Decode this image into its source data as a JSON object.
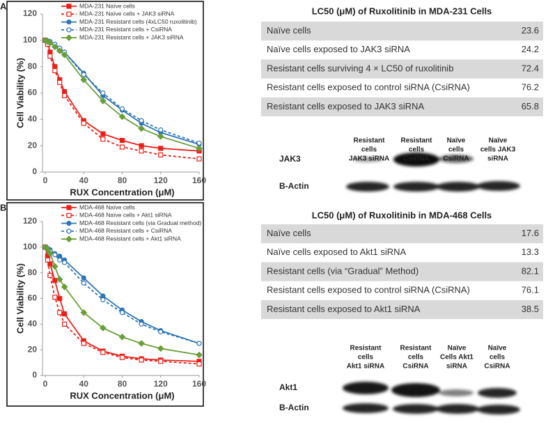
{
  "chart_data": [
    {
      "type": "line",
      "panel_label": "A",
      "x_label": "RUX Concentration (μM)",
      "y_label": "Cell Viability (%)",
      "x": [
        0,
        2.5,
        5,
        10,
        15,
        20,
        40,
        60,
        80,
        100,
        120,
        160
      ],
      "xlim": [
        0,
        160
      ],
      "xticks": [
        0,
        40,
        80,
        120,
        160
      ],
      "ylim": [
        0,
        120
      ],
      "yticks": [
        0,
        20,
        40,
        60,
        80,
        100,
        120
      ],
      "grid": false,
      "legend": "top",
      "series": [
        {
          "name": "MDA-231 Naïve cells",
          "color": "#e8201a",
          "line_style": "solid",
          "marker": "square",
          "filled": true,
          "values": [
            100,
            98,
            91,
            80,
            70,
            61,
            39,
            29,
            24,
            20,
            18,
            16
          ]
        },
        {
          "name": "MDA-231 Naïve cells + JAK3 siRNA",
          "color": "#e8201a",
          "line_style": "dashed",
          "marker": "square",
          "filled": false,
          "values": [
            100,
            97,
            88,
            77,
            68,
            58,
            37,
            25,
            19,
            16,
            13,
            10
          ]
        },
        {
          "name": "MDA-231 Resistant cells (4xLC50 ruxolitinib)",
          "color": "#2e75b6",
          "line_style": "solid",
          "marker": "circle",
          "filled": true,
          "values": [
            100,
            99.5,
            99,
            97,
            94,
            91,
            75,
            58,
            47,
            37,
            30,
            21
          ]
        },
        {
          "name": "MDA-231 Resistant cells + CsiRNA",
          "color": "#2e75b6",
          "line_style": "dashed",
          "marker": "circle",
          "filled": false,
          "values": [
            100,
            99.5,
            99,
            97,
            94,
            91,
            74,
            60,
            48,
            39,
            32,
            22
          ]
        },
        {
          "name": "MDA-231 Resistant cells + JAK3 siRNA",
          "color": "#6a9e3a",
          "line_style": "solid",
          "marker": "diamond",
          "filled": true,
          "values": [
            100,
            99,
            98,
            95,
            92,
            89,
            70,
            54,
            42,
            33,
            27,
            18
          ]
        }
      ]
    },
    {
      "type": "line",
      "panel_label": "B",
      "x_label": "RUX Concentration (μM)",
      "y_label": "Cell Viability (%)",
      "x": [
        0,
        2.5,
        5,
        10,
        15,
        20,
        40,
        60,
        80,
        100,
        120,
        160
      ],
      "xlim": [
        0,
        160
      ],
      "xticks": [
        0,
        40,
        80,
        120,
        160
      ],
      "ylim": [
        0,
        120
      ],
      "yticks": [
        0,
        20,
        40,
        60,
        80,
        100,
        120
      ],
      "grid": false,
      "legend": "top",
      "series": [
        {
          "name": "MDA-468 Naïve cells",
          "color": "#e8201a",
          "line_style": "solid",
          "marker": "square",
          "filled": true,
          "values": [
            100,
            93,
            87,
            74,
            60,
            48,
            27,
            19,
            15,
            13,
            12,
            11
          ]
        },
        {
          "name": "MDA-468 Naïve cells + Akt1 siRNA",
          "color": "#e8201a",
          "line_style": "dashed",
          "marker": "square",
          "filled": false,
          "values": [
            100,
            90,
            78,
            61,
            49,
            40,
            25,
            18,
            14,
            12,
            11,
            9
          ]
        },
        {
          "name": "MDA-468 Resistant cells (via Gradual method)",
          "color": "#2e75b6",
          "line_style": "solid",
          "marker": "circle",
          "filled": true,
          "values": [
            100,
            99,
            98,
            95,
            93,
            90,
            76,
            62,
            51,
            42,
            35,
            25
          ]
        },
        {
          "name": "MDA-468 Resistant cells + CsiRNA",
          "color": "#2e75b6",
          "line_style": "dashed",
          "marker": "circle",
          "filled": false,
          "values": [
            100,
            99,
            97,
            94,
            90,
            88,
            72,
            59,
            49,
            40,
            34,
            25
          ]
        },
        {
          "name": "MDA-468 Resistant cells + Akt1 siRNA",
          "color": "#6a9e3a",
          "line_style": "solid",
          "marker": "diamond",
          "filled": true,
          "values": [
            100,
            98,
            95,
            85,
            75,
            69,
            49,
            37,
            30,
            25,
            21,
            16
          ]
        }
      ]
    }
  ],
  "tables": [
    {
      "title": "LC50 (μM) of Ruxolitinib  in MDA-231 Cells",
      "rows": [
        [
          "Naïve cells",
          23.6
        ],
        [
          "Naïve cells exposed to JAK3 siRNA",
          24.2
        ],
        [
          "Resistant cells surviving 4 × LC50 of ruxolitinib",
          72.4
        ],
        [
          "Resistant cells exposed to control siRNA (CsiRNA)",
          76.2
        ],
        [
          "Resistant cells exposed to JAK3 siRNA",
          65.8
        ]
      ]
    },
    {
      "title": "LC50 (μM) of Ruxolitinib in MDA-468 Cells",
      "rows": [
        [
          "Naïve cells",
          17.6
        ],
        [
          "Naïve cells exposed to Akt1 siRNA",
          13.3
        ],
        [
          "Resistant cells (via “Gradual” Method)",
          82.1
        ],
        [
          "Resistant cells exposed to control siRNA (CsiRNA)",
          76.1
        ],
        [
          "Resistant cells exposed to Akt1 siRNA",
          38.5
        ]
      ]
    }
  ],
  "blots": [
    {
      "lanes": [
        [
          "Resistant",
          "cells",
          "JAK3 siRNA"
        ],
        [
          "Resistant",
          "cells",
          "CsiRNA"
        ],
        [
          "Naïve",
          "cells",
          "CsiRNA"
        ],
        [
          "Naïve",
          "cells JAK3",
          "siRNA"
        ]
      ],
      "rows": [
        "JAK3",
        "B-Actin"
      ]
    },
    {
      "lanes": [
        [
          "Resistant",
          "cells",
          "Akt1 siRNA"
        ],
        [
          "Resistant",
          "cells",
          "CsiRNA"
        ],
        [
          "Naïve",
          "Cells Akt1",
          "siRNA"
        ],
        [
          "Naïve",
          "cells",
          "CsiRNA"
        ]
      ],
      "rows": [
        "Akt1",
        "B-Actin"
      ]
    }
  ]
}
